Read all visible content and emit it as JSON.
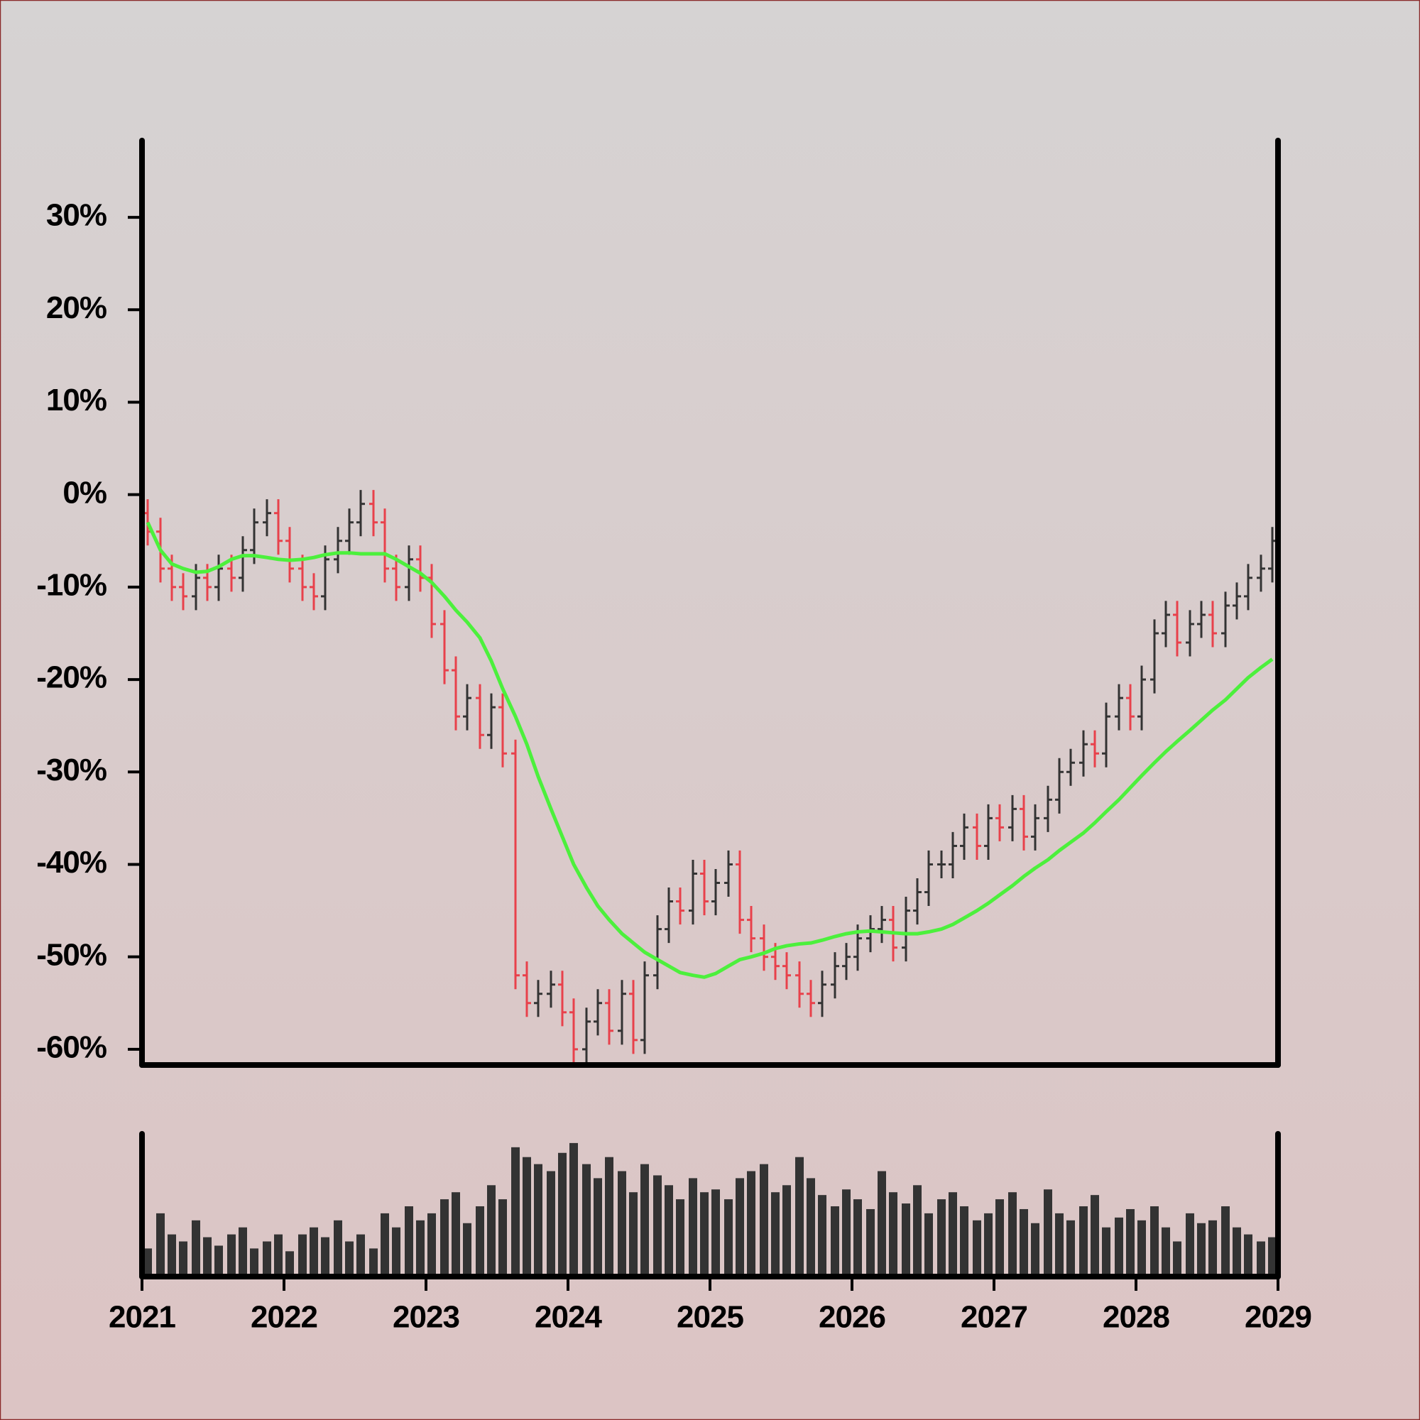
{
  "chart_data": {
    "type": "ohlc",
    "x": [
      2021.04,
      2021.13,
      2021.21,
      2021.29,
      2021.38,
      2021.46,
      2021.54,
      2021.63,
      2021.71,
      2021.79,
      2021.88,
      2021.96,
      2022.04,
      2022.13,
      2022.21,
      2022.29,
      2022.38,
      2022.46,
      2022.54,
      2022.63,
      2022.71,
      2022.79,
      2022.88,
      2022.96,
      2023.04,
      2023.13,
      2023.21,
      2023.29,
      2023.38,
      2023.46,
      2023.54,
      2023.63,
      2023.71,
      2023.79,
      2023.88,
      2023.96,
      2024.04,
      2024.13,
      2024.21,
      2024.29,
      2024.38,
      2024.46,
      2024.54,
      2024.63,
      2024.71,
      2024.79,
      2024.88,
      2024.96,
      2025.04,
      2025.13,
      2025.21,
      2025.29,
      2025.38,
      2025.46,
      2025.54,
      2025.63,
      2025.71,
      2025.79,
      2025.88,
      2025.96,
      2026.04,
      2026.13,
      2026.21,
      2026.29,
      2026.38,
      2026.46,
      2026.54,
      2026.63,
      2026.71,
      2026.79,
      2026.88,
      2026.96,
      2027.04,
      2027.13,
      2027.21,
      2027.29,
      2027.38,
      2027.46,
      2027.54,
      2027.63,
      2027.71,
      2027.79,
      2027.88,
      2027.96,
      2028.04,
      2028.13,
      2028.21,
      2028.29,
      2028.38,
      2028.46,
      2028.54,
      2028.63,
      2028.71,
      2028.79,
      2028.88,
      2028.96
    ],
    "xlim": [
      2021,
      2029
    ],
    "xticks": [
      2021,
      2022,
      2023,
      2024,
      2025,
      2026,
      2027,
      2028,
      2029
    ],
    "ylim": [
      -61.7,
      38.3
    ],
    "yticks": [
      {
        "value": 30,
        "label": "30%"
      },
      {
        "value": 20,
        "label": "20%"
      },
      {
        "value": 10,
        "label": "10%"
      },
      {
        "value": 0,
        "label": "0%"
      },
      {
        "value": -10,
        "label": "-10%"
      },
      {
        "value": -20,
        "label": "-20%"
      },
      {
        "value": -30,
        "label": "-30%"
      },
      {
        "value": -40,
        "label": "-40%"
      },
      {
        "value": -50,
        "label": "-50%"
      },
      {
        "value": -60,
        "label": "-60%"
      }
    ],
    "ohlc": {
      "up_color": "#333333",
      "down_color": "#e8414b",
      "open": [
        -2,
        -4,
        -8,
        -10,
        -11,
        -9,
        -10,
        -8,
        -9,
        -6,
        -3,
        -2,
        -5,
        -8,
        -10,
        -11,
        -7,
        -5,
        -3,
        -1,
        -3,
        -8,
        -10,
        -7,
        -9,
        -14,
        -19,
        -24,
        -22,
        -26,
        -23,
        -28,
        -52,
        -55,
        -54,
        -53,
        -56,
        -60,
        -57,
        -55,
        -58,
        -54,
        -59,
        -52,
        -47,
        -44,
        -45,
        -41,
        -44,
        -42,
        -40,
        -46,
        -48,
        -50,
        -51,
        -52,
        -54,
        -55,
        -53,
        -51,
        -50,
        -48,
        -47,
        -46,
        -49,
        -45,
        -43,
        -40,
        -40,
        -38,
        -36,
        -38,
        -35,
        -36,
        -34,
        -37,
        -35,
        -33,
        -30,
        -29,
        -27,
        -28,
        -24,
        -22,
        -24,
        -20,
        -15,
        -13,
        -16,
        -14,
        -13,
        -15,
        -12,
        -11,
        -9,
        -8
      ],
      "high": [
        -0.5,
        -2.5,
        -6.5,
        -8.5,
        -7.5,
        -7.5,
        -6.5,
        -6.5,
        -4.5,
        -1.5,
        -0.5,
        -0.5,
        -3.5,
        -6.5,
        -8.5,
        -5.5,
        -3.5,
        -1.5,
        0.5,
        0.5,
        -1.5,
        -6.5,
        -5.5,
        -5.5,
        -7.5,
        -12.5,
        -17.5,
        -20.5,
        -20.5,
        -21.5,
        -21.5,
        -26.5,
        -50.5,
        -52.5,
        -51.5,
        -51.5,
        -54.5,
        -55.5,
        -53.5,
        -53.5,
        -52.5,
        -52.5,
        -50.5,
        -45.5,
        -42.5,
        -42.5,
        -39.5,
        -39.5,
        -40.5,
        -38.5,
        -38.5,
        -44.5,
        -46.5,
        -48.5,
        -49.5,
        -50.5,
        -52.5,
        -51.5,
        -49.5,
        -48.5,
        -46.5,
        -45.5,
        -44.5,
        -44.5,
        -43.5,
        -41.5,
        -38.5,
        -38.5,
        -36.5,
        -34.5,
        -34.5,
        -33.5,
        -33.5,
        -32.5,
        -32.5,
        -33.5,
        -31.5,
        -28.5,
        -27.5,
        -25.5,
        -25.5,
        -22.5,
        -20.5,
        -20.5,
        -18.5,
        -13.5,
        -11.5,
        -11.5,
        -12.5,
        -11.5,
        -11.5,
        -10.5,
        -9.5,
        -7.5,
        -6.5,
        -3.5
      ],
      "low": [
        -5.5,
        -9.5,
        -11.5,
        -12.5,
        -12.5,
        -11.5,
        -11.5,
        -10.5,
        -10.5,
        -7.5,
        -4.5,
        -6.5,
        -9.5,
        -11.5,
        -12.5,
        -12.5,
        -8.5,
        -6.5,
        -4.5,
        -4.5,
        -9.5,
        -11.5,
        -11.5,
        -10.5,
        -15.5,
        -20.5,
        -25.5,
        -25.5,
        -27.5,
        -27.5,
        -29.5,
        -53.5,
        -56.5,
        -56.5,
        -55.5,
        -57.5,
        -61.5,
        -61.5,
        -58.5,
        -59.5,
        -59.5,
        -60.5,
        -60.5,
        -53.5,
        -48.5,
        -46.5,
        -46.5,
        -45.5,
        -45.5,
        -43.5,
        -47.5,
        -49.5,
        -51.5,
        -52.5,
        -53.5,
        -55.5,
        -56.5,
        -56.5,
        -54.5,
        -52.5,
        -51.5,
        -49.5,
        -48.5,
        -50.5,
        -50.5,
        -46.5,
        -44.5,
        -41.5,
        -41.5,
        -39.5,
        -39.5,
        -39.5,
        -37.5,
        -37.5,
        -38.5,
        -38.5,
        -36.5,
        -34.5,
        -31.5,
        -30.5,
        -29.5,
        -29.5,
        -25.5,
        -25.5,
        -25.5,
        -21.5,
        -16.5,
        -17.5,
        -17.5,
        -15.5,
        -16.5,
        -16.5,
        -13.5,
        -12.5,
        -10.5,
        -9.5
      ],
      "close": [
        -4,
        -8,
        -10,
        -11,
        -9,
        -10,
        -8,
        -9,
        -6,
        -3,
        -2,
        -5,
        -8,
        -10,
        -11,
        -7,
        -5,
        -3,
        -1,
        -3,
        -8,
        -10,
        -7,
        -9,
        -14,
        -19,
        -24,
        -22,
        -26,
        -23,
        -28,
        -52,
        -55,
        -54,
        -53,
        -56,
        -60,
        -57,
        -55,
        -58,
        -54,
        -59,
        -52,
        -47,
        -44,
        -45,
        -41,
        -44,
        -42,
        -40,
        -46,
        -48,
        -50,
        -51,
        -52,
        -54,
        -55,
        -53,
        -51,
        -50,
        -48,
        -47,
        -46,
        -49,
        -45,
        -43,
        -40,
        -40,
        -38,
        -36,
        -38,
        -35,
        -36,
        -34,
        -37,
        -35,
        -33,
        -30,
        -29,
        -27,
        -28,
        -24,
        -22,
        -24,
        -20,
        -15,
        -13,
        -16,
        -14,
        -13,
        -15,
        -12,
        -11,
        -9,
        -8,
        -5
      ]
    },
    "ma": {
      "color": "#4cf03c",
      "values": [
        -3,
        -6,
        -7.5,
        -8,
        -8.4,
        -8.3,
        -7.8,
        -7,
        -6.6,
        -6.6,
        -6.8,
        -7,
        -7.1,
        -7,
        -6.8,
        -6.5,
        -6.3,
        -6.3,
        -6.4,
        -6.4,
        -6.4,
        -7,
        -7.8,
        -8.5,
        -9.5,
        -11,
        -12.5,
        -13.8,
        -15.5,
        -18,
        -21,
        -24,
        -27,
        -30.5,
        -34,
        -37,
        -40,
        -42.5,
        -44.5,
        -46,
        -47.5,
        -48.5,
        -49.5,
        -50.3,
        -51,
        -51.7,
        -52,
        -52.2,
        -51.8,
        -51,
        -50.3,
        -50,
        -49.6,
        -49.1,
        -48.8,
        -48.6,
        -48.5,
        -48.2,
        -47.8,
        -47.5,
        -47.3,
        -47.2,
        -47.3,
        -47.4,
        -47.5,
        -47.5,
        -47.3,
        -47,
        -46.5,
        -45.8,
        -45,
        -44.2,
        -43.3,
        -42.3,
        -41.3,
        -40.4,
        -39.5,
        -38.5,
        -37.6,
        -36.6,
        -35.5,
        -34.3,
        -33,
        -31.7,
        -30.4,
        -29,
        -27.8,
        -26.7,
        -25.5,
        -24.4,
        -23.3,
        -22.2,
        -21,
        -19.8,
        -18.7,
        -17.8
      ]
    },
    "volume": {
      "color": "#333333",
      "ylim": [
        0,
        100
      ],
      "values": [
        20,
        45,
        30,
        25,
        40,
        28,
        22,
        30,
        35,
        20,
        25,
        30,
        18,
        30,
        35,
        28,
        40,
        25,
        30,
        20,
        45,
        35,
        50,
        40,
        45,
        55,
        60,
        38,
        50,
        65,
        55,
        92,
        85,
        80,
        75,
        88,
        95,
        80,
        70,
        85,
        75,
        60,
        80,
        72,
        65,
        55,
        70,
        60,
        62,
        55,
        70,
        75,
        80,
        60,
        65,
        85,
        70,
        58,
        50,
        62,
        55,
        48,
        75,
        60,
        52,
        65,
        45,
        55,
        60,
        50,
        40,
        45,
        55,
        60,
        48,
        38,
        62,
        45,
        40,
        50,
        58,
        35,
        42,
        48,
        40,
        50,
        35,
        25,
        45,
        38,
        40,
        50,
        35,
        30,
        25,
        28
      ]
    }
  }
}
